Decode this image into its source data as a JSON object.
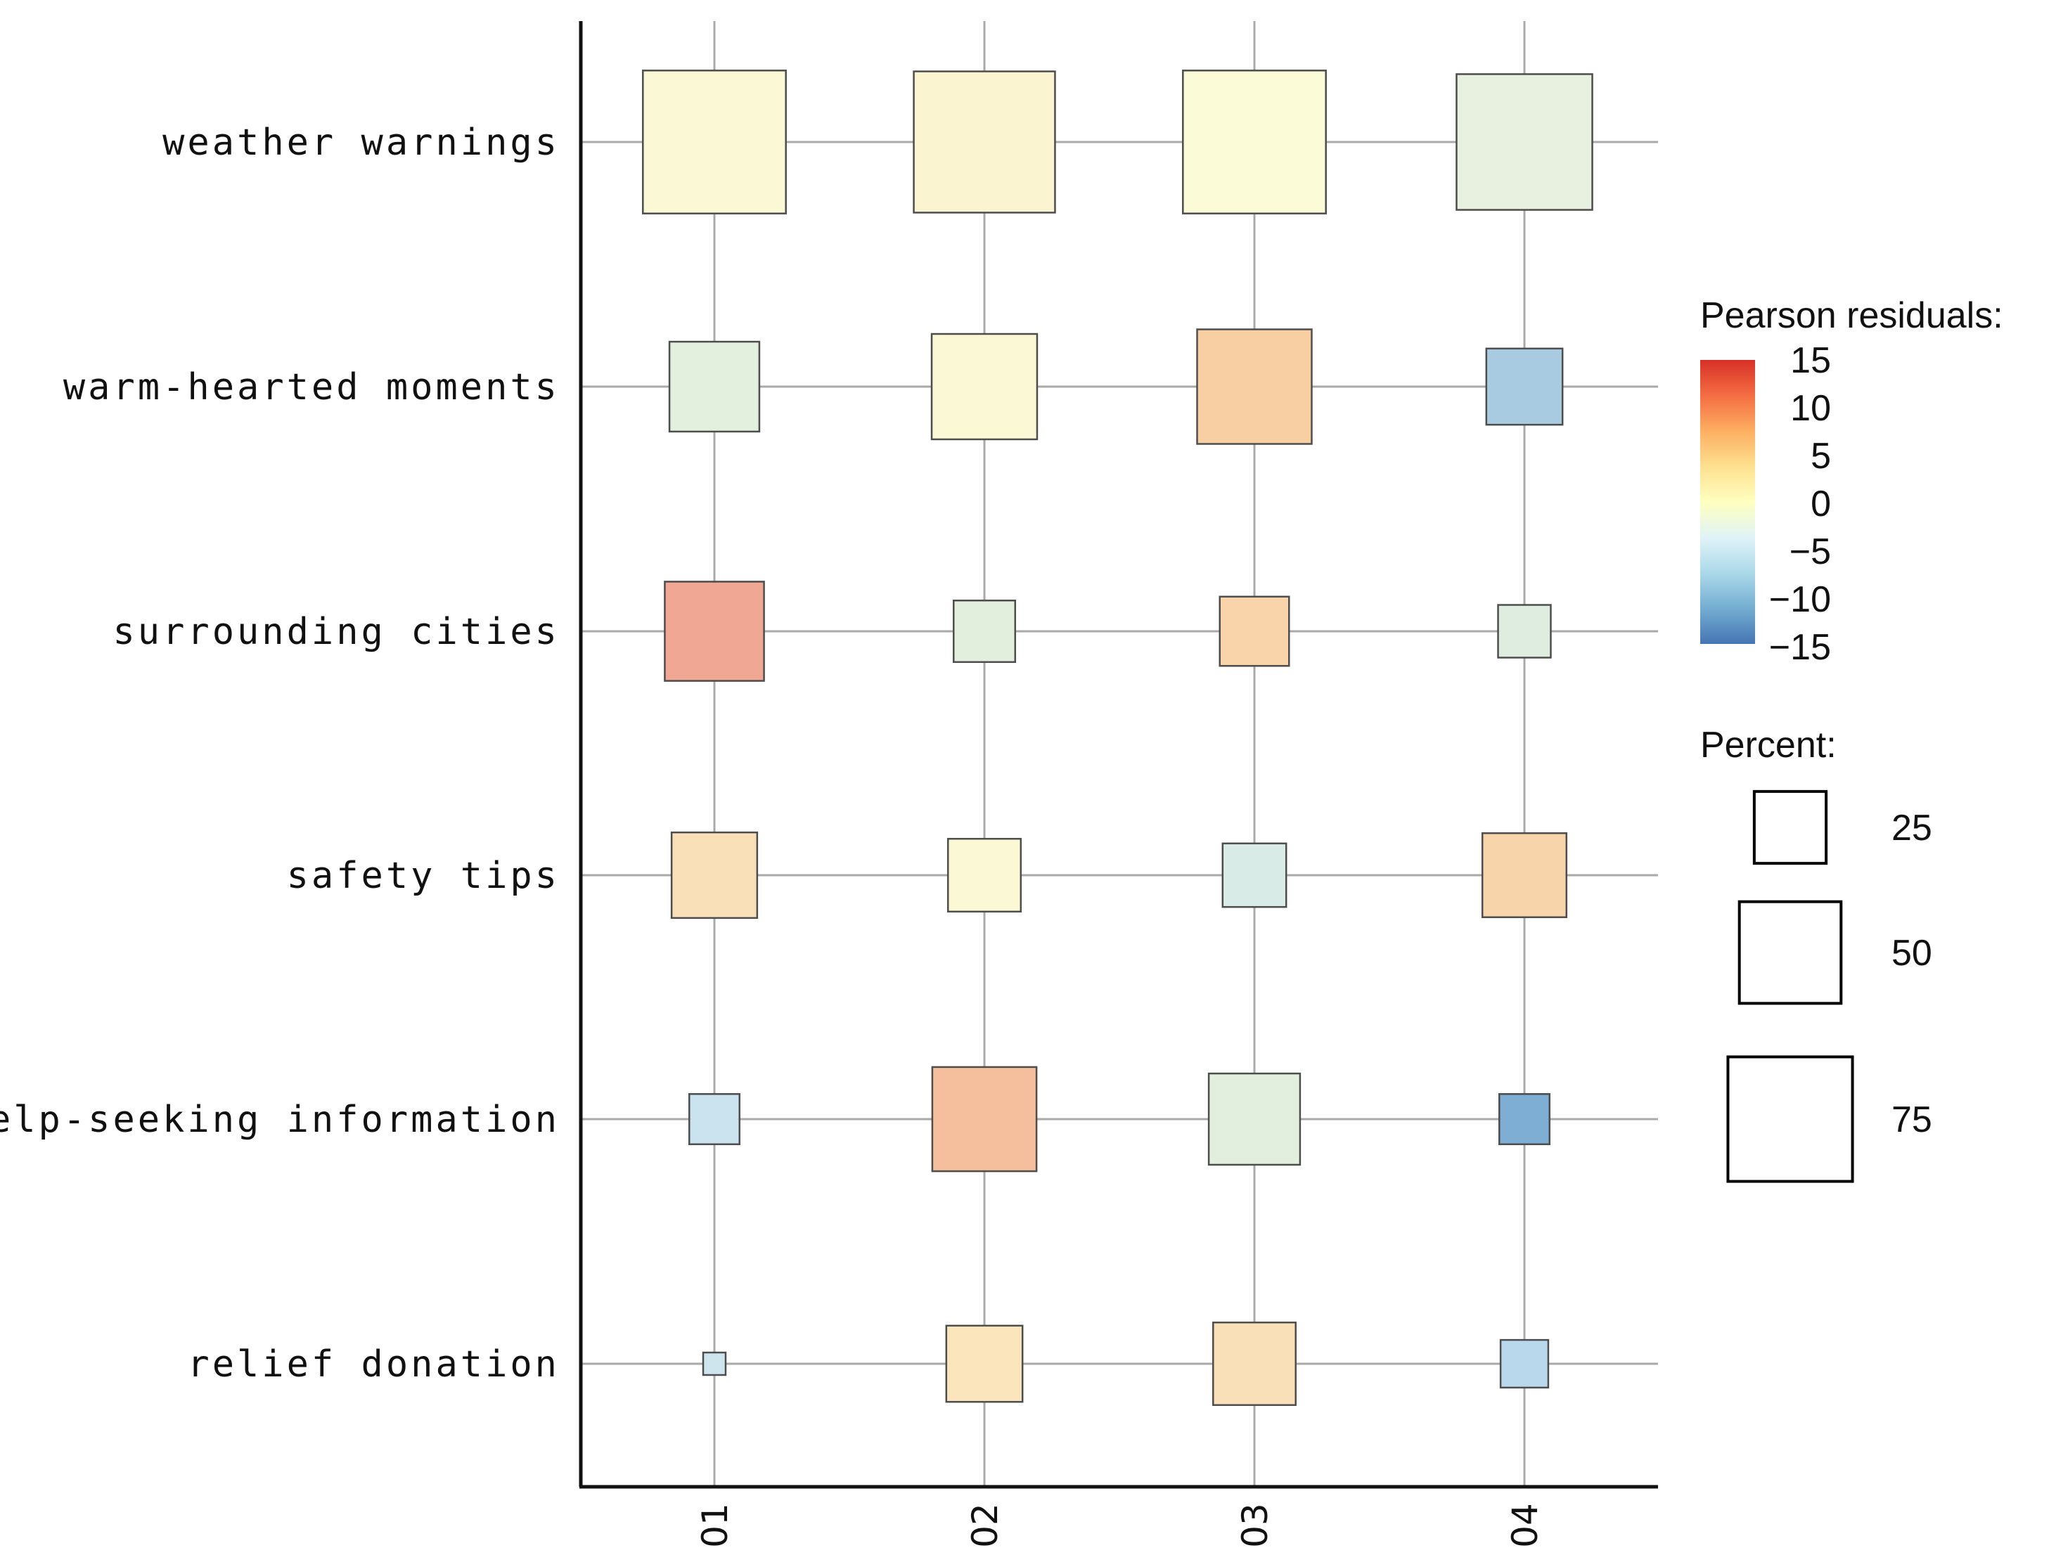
{
  "chart_data": {
    "type": "balloon",
    "columns": [
      "01",
      "02",
      "03",
      "04"
    ],
    "rows": [
      "weather warnings",
      "warm-hearted moments",
      "surrounding cities",
      "safety tips",
      "help-seeking information",
      "relief donation"
    ],
    "cells": [
      {
        "row": "weather warnings",
        "col": "01",
        "percent": 81,
        "residual": 1.5,
        "color": "#fbf8d5"
      },
      {
        "row": "weather warnings",
        "col": "02",
        "percent": 79,
        "residual": 2.0,
        "color": "#fbf4d1"
      },
      {
        "row": "weather warnings",
        "col": "03",
        "percent": 81,
        "residual": 1.0,
        "color": "#fcfbd7"
      },
      {
        "row": "weather warnings",
        "col": "04",
        "percent": 73,
        "residual": -3.0,
        "color": "#e8f1df"
      },
      {
        "row": "warm-hearted moments",
        "col": "01",
        "percent": 32,
        "residual": -3.5,
        "color": "#e3f0de"
      },
      {
        "row": "warm-hearted moments",
        "col": "02",
        "percent": 44,
        "residual": 1.0,
        "color": "#fbf8d6"
      },
      {
        "row": "warm-hearted moments",
        "col": "03",
        "percent": 52,
        "residual": 6.0,
        "color": "#f8cfa2"
      },
      {
        "row": "warm-hearted moments",
        "col": "04",
        "percent": 23,
        "residual": -9.0,
        "color": "#a9cbe1"
      },
      {
        "row": "surrounding cities",
        "col": "01",
        "percent": 39,
        "residual": 11.0,
        "color": "#f0a794"
      },
      {
        "row": "surrounding cities",
        "col": "02",
        "percent": 15,
        "residual": -3.0,
        "color": "#e3efdd"
      },
      {
        "row": "surrounding cities",
        "col": "03",
        "percent": 19,
        "residual": 5.0,
        "color": "#f9d4aa"
      },
      {
        "row": "surrounding cities",
        "col": "04",
        "percent": 11,
        "residual": -4.0,
        "color": "#deede0"
      },
      {
        "row": "safety tips",
        "col": "01",
        "percent": 29,
        "residual": 3.5,
        "color": "#fae0b8"
      },
      {
        "row": "safety tips",
        "col": "02",
        "percent": 21,
        "residual": 1.0,
        "color": "#fbf8d5"
      },
      {
        "row": "safety tips",
        "col": "03",
        "percent": 16,
        "residual": -5.0,
        "color": "#d8ebe6"
      },
      {
        "row": "safety tips",
        "col": "04",
        "percent": 28,
        "residual": 5.0,
        "color": "#f8d4ab"
      },
      {
        "row": "help-seeking information",
        "col": "01",
        "percent": 10,
        "residual": -7.0,
        "color": "#cbe2ef"
      },
      {
        "row": "help-seeking information",
        "col": "02",
        "percent": 43,
        "residual": 8.0,
        "color": "#f5be9d"
      },
      {
        "row": "help-seeking information",
        "col": "03",
        "percent": 33,
        "residual": -3.0,
        "color": "#e2efdf"
      },
      {
        "row": "help-seeking information",
        "col": "04",
        "percent": 10,
        "residual": -13.0,
        "color": "#7faed5"
      },
      {
        "row": "relief donation",
        "col": "01",
        "percent": 2,
        "residual": -6.0,
        "color": "#cfe5ee"
      },
      {
        "row": "relief donation",
        "col": "02",
        "percent": 23,
        "residual": 3.5,
        "color": "#fae5bd"
      },
      {
        "row": "relief donation",
        "col": "03",
        "percent": 27,
        "residual": 4.0,
        "color": "#fae0b8"
      },
      {
        "row": "relief donation",
        "col": "04",
        "percent": 9,
        "residual": -8.0,
        "color": "#bad8ec"
      }
    ],
    "color_legend": {
      "title": "Pearson residuals:",
      "ticks": [
        "15",
        "10",
        "5",
        "0",
        "−5",
        "−10",
        "−15"
      ],
      "range": [
        -15,
        15
      ],
      "gradient": [
        "#d73027",
        "#f46d43",
        "#fdae61",
        "#fee090",
        "#ffffbf",
        "#e0f3f8",
        "#abd9e9",
        "#74add1",
        "#4575b4"
      ]
    },
    "size_legend": {
      "title": "Percent:",
      "entries": [
        {
          "label": "25",
          "percent": 25
        },
        {
          "label": "50",
          "percent": 50
        },
        {
          "label": "75",
          "percent": 75
        }
      ]
    }
  }
}
